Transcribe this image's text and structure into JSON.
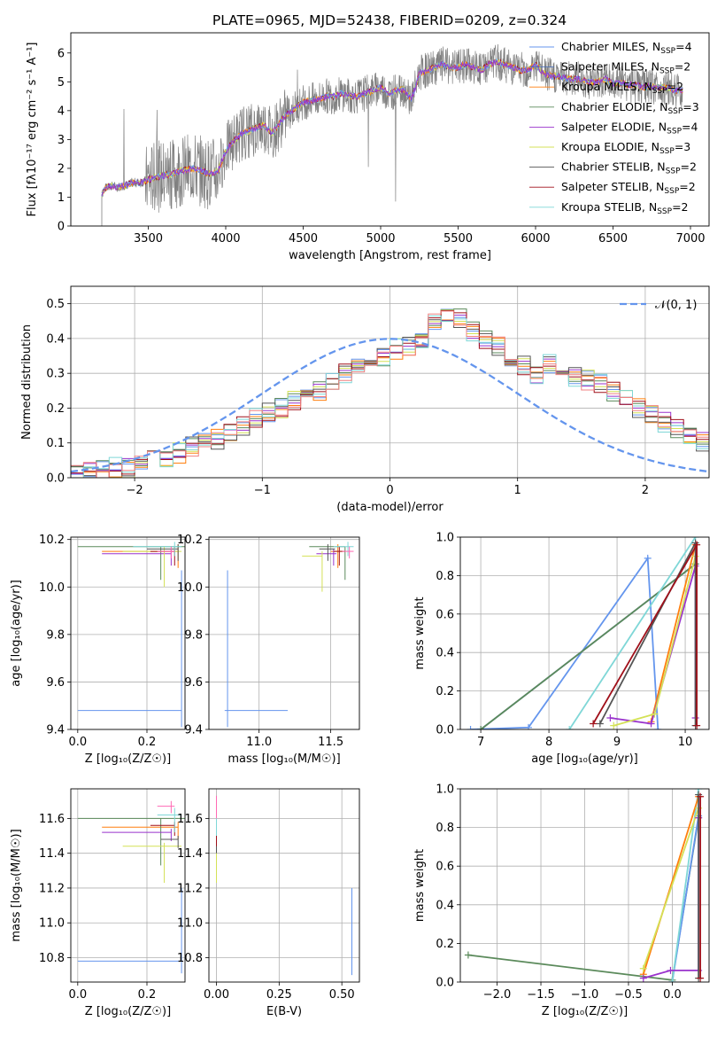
{
  "title": "PLATE=0965, MJD=52438, FIBERID=0209, z=0.324",
  "colors": {
    "chabrier_miles": "#6495ED",
    "salpeter_miles": "#4B6FB5",
    "kroupa_miles": "#FF7F0E",
    "chabrier_elodie": "#5B8A5B",
    "salpeter_elodie": "#9932CC",
    "kroupa_elodie": "#D4E157",
    "chabrier_stelib": "#555555",
    "salpeter_stelib": "#A0101A",
    "kroupa_stelib": "#7FD7D7",
    "data": "#808080",
    "pink": "#FF69B4",
    "salmon": "#F08080"
  },
  "chart_data": [
    {
      "type": "line",
      "id": "spectrum",
      "xlabel": "wavelength [Angstrom, rest frame]",
      "ylabel": "Flux [fλ10⁻¹⁷ erg cm⁻² s⁻¹ A⁻¹]",
      "xlim": [
        3000,
        7120
      ],
      "ylim": [
        0,
        6.7
      ],
      "xticks": [
        3500,
        4000,
        4500,
        5000,
        5500,
        6000,
        6500,
        7000
      ],
      "yticks": [
        0,
        1,
        2,
        3,
        4,
        5,
        6
      ],
      "legend": [
        "Chabrier MILES, N_SSP=4",
        "Salpeter MILES, N_SSP=2",
        "Kroupa MILES, N_SSP=2",
        "Chabrier ELODIE, N_SSP=3",
        "Salpeter ELODIE, N_SSP=4",
        "Kroupa ELODIE, N_SSP=3",
        "Chabrier STELIB, N_SSP=2",
        "Salpeter STELIB, N_SSP=2",
        "Kroupa STELIB, N_SSP=2"
      ],
      "legend_placement": "upper-right",
      "continuum": {
        "x": [
          3200,
          3220,
          3250,
          3300,
          3350,
          3400,
          3450,
          3500,
          3550,
          3600,
          3650,
          3700,
          3750,
          3800,
          3850,
          3900,
          3950,
          4000,
          4050,
          4100,
          4150,
          4200,
          4250,
          4300,
          4350,
          4400,
          4450,
          4500,
          4550,
          4600,
          4650,
          4700,
          4750,
          4800,
          4850,
          4900,
          4950,
          5000,
          5050,
          5100,
          5150,
          5200,
          5250,
          5300,
          5350,
          5400,
          5450,
          5500,
          5550,
          5600,
          5650,
          5700,
          5750,
          5800,
          5850,
          5900,
          5950,
          6000,
          6050,
          6100,
          6150,
          6200,
          6250,
          6300,
          6350,
          6400,
          6450,
          6500,
          6550,
          6600,
          6650,
          6700,
          6750,
          6800,
          6850,
          6900,
          6950
        ],
        "y": [
          1.1,
          1.3,
          1.4,
          1.35,
          1.4,
          1.5,
          1.5,
          1.6,
          1.7,
          1.75,
          1.8,
          1.9,
          1.95,
          2.0,
          1.9,
          1.8,
          1.9,
          2.6,
          2.95,
          3.2,
          3.3,
          3.4,
          3.5,
          3.2,
          3.6,
          3.9,
          4.1,
          4.3,
          4.35,
          4.4,
          4.5,
          4.5,
          4.6,
          4.5,
          4.5,
          4.6,
          4.7,
          4.8,
          4.6,
          4.7,
          4.75,
          4.4,
          5.3,
          5.4,
          5.5,
          5.6,
          5.5,
          5.5,
          5.6,
          5.5,
          5.4,
          5.6,
          5.7,
          5.6,
          5.5,
          5.4,
          5.4,
          5.6,
          5.3,
          5.2,
          5.2,
          5.1,
          5.1,
          5.1,
          5.0,
          5.0,
          5.1,
          4.95,
          4.95,
          4.9,
          4.9,
          4.8,
          4.85,
          4.8,
          4.8,
          4.7,
          4.7
        ]
      },
      "data_x_range": [
        3200,
        6950
      ]
    },
    {
      "type": "step",
      "id": "residuals",
      "xlabel": "(data-model)/error",
      "ylabel": "Normed distribution",
      "xlim": [
        -2.5,
        2.5
      ],
      "ylim": [
        0,
        0.55
      ],
      "xticks": [
        -2,
        -1,
        0,
        1,
        2
      ],
      "yticks": [
        0.0,
        0.1,
        0.2,
        0.3,
        0.4,
        0.5
      ],
      "legend": [
        "𝒩(0, 1)"
      ],
      "legend_placement": "upper-right",
      "bin_width": 0.1,
      "bin_start": -2.5,
      "base_hist": [
        0.02,
        0.02,
        0.02,
        0.03,
        0.03,
        0.04,
        0.05,
        0.06,
        0.07,
        0.09,
        0.1,
        0.11,
        0.13,
        0.15,
        0.17,
        0.19,
        0.2,
        0.22,
        0.23,
        0.25,
        0.27,
        0.3,
        0.32,
        0.33,
        0.35,
        0.37,
        0.38,
        0.4,
        0.45,
        0.47,
        0.46,
        0.42,
        0.4,
        0.38,
        0.35,
        0.32,
        0.3,
        0.33,
        0.31,
        0.29,
        0.28,
        0.27,
        0.25,
        0.23,
        0.2,
        0.18,
        0.16,
        0.14,
        0.12,
        0.1,
        0.09,
        0.08,
        0.07,
        0.06,
        0.05,
        0.04,
        0.03,
        0.03,
        0.02,
        0.02,
        0.02
      ]
    },
    {
      "type": "errorbar",
      "id": "age_vs_z",
      "xlabel": "Z [log₁₀(Z/Z☉)]",
      "ylabel": "age  [log₁₀(age/yr)]",
      "xlim": [
        -0.02,
        0.31
      ],
      "ylim": [
        9.4,
        10.21
      ],
      "xticks": [
        0.0,
        0.2
      ],
      "yticks": [
        9.4,
        9.6,
        9.8,
        10.0,
        10.2
      ],
      "points": [
        {
          "x": 0.3,
          "y": 9.48,
          "xerr": [
            0.3,
            0.0
          ],
          "yerr": [
            0.07,
            0.59
          ],
          "c": "chabrier_miles"
        },
        {
          "x": 0.29,
          "y": 10.15,
          "xerr": [
            0.22,
            0.0
          ],
          "yerr": [
            0.07,
            0.03
          ],
          "c": "kroupa_miles"
        },
        {
          "x": 0.24,
          "y": 10.17,
          "xerr": [
            0.24,
            0.07
          ],
          "yerr": [
            0.14,
            0.0
          ],
          "c": "chabrier_elodie"
        },
        {
          "x": 0.27,
          "y": 10.14,
          "xerr": [
            0.2,
            0.0
          ],
          "yerr": [
            0.05,
            0.02
          ],
          "c": "salpeter_elodie"
        },
        {
          "x": 0.25,
          "y": 10.15,
          "xerr": [
            0.12,
            0.05
          ],
          "yerr": [
            0.15,
            0.02
          ],
          "c": "kroupa_elodie"
        },
        {
          "x": 0.29,
          "y": 10.16,
          "xerr": [
            0.09,
            0.0
          ],
          "yerr": [
            0.05,
            0.02
          ],
          "c": "chabrier_stelib"
        },
        {
          "x": 0.28,
          "y": 10.15,
          "xerr": [
            0.07,
            0.0
          ],
          "yerr": [
            0.06,
            0.02
          ],
          "c": "salpeter_stelib"
        },
        {
          "x": 0.28,
          "y": 10.17,
          "xerr": [
            0.12,
            0.02
          ],
          "yerr": [
            0.04,
            0.02
          ],
          "c": "kroupa_stelib"
        },
        {
          "x": 0.27,
          "y": 10.15,
          "xerr": [
            0.04,
            0.01
          ],
          "yerr": [
            0.03,
            0.02
          ],
          "c": "pink"
        }
      ]
    },
    {
      "type": "errorbar",
      "id": "age_vs_mass",
      "xlabel": "mass [log₁₀(M/M☉)]",
      "ylabel": "",
      "xlim": [
        10.65,
        11.7
      ],
      "ylim": [
        9.4,
        10.21
      ],
      "xticks": [
        11.0,
        11.5
      ],
      "yticks": [
        9.4,
        9.6,
        9.8,
        10.0,
        10.2
      ],
      "points": [
        {
          "x": 10.78,
          "y": 9.48,
          "xerr": [
            0.02,
            0.42
          ],
          "yerr": [
            0.07,
            0.59
          ],
          "c": "chabrier_miles"
        },
        {
          "x": 11.55,
          "y": 10.15,
          "xerr": [
            0.05,
            0.05
          ],
          "yerr": [
            0.07,
            0.03
          ],
          "c": "kroupa_miles"
        },
        {
          "x": 11.6,
          "y": 10.17,
          "xerr": [
            0.25,
            0.0
          ],
          "yerr": [
            0.14,
            0.0
          ],
          "c": "chabrier_elodie"
        },
        {
          "x": 11.52,
          "y": 10.14,
          "xerr": [
            0.12,
            0.02
          ],
          "yerr": [
            0.05,
            0.02
          ],
          "c": "salpeter_elodie"
        },
        {
          "x": 11.44,
          "y": 10.13,
          "xerr": [
            0.14,
            0.0
          ],
          "yerr": [
            0.15,
            0.02
          ],
          "c": "kroupa_elodie"
        },
        {
          "x": 11.48,
          "y": 10.16,
          "xerr": [
            0.06,
            0.05
          ],
          "yerr": [
            0.05,
            0.02
          ],
          "c": "chabrier_stelib"
        },
        {
          "x": 11.56,
          "y": 10.15,
          "xerr": [
            0.04,
            0.04
          ],
          "yerr": [
            0.06,
            0.02
          ],
          "c": "salpeter_stelib"
        },
        {
          "x": 11.62,
          "y": 10.17,
          "xerr": [
            0.1,
            0.04
          ],
          "yerr": [
            0.04,
            0.02
          ],
          "c": "kroupa_stelib"
        },
        {
          "x": 11.63,
          "y": 10.15,
          "xerr": [
            0.05,
            0.03
          ],
          "yerr": [
            0.03,
            0.02
          ],
          "c": "pink"
        }
      ]
    },
    {
      "type": "line",
      "id": "weight_vs_age",
      "xlabel": "age  [log₁₀(age/yr)]",
      "ylabel": "mass weight",
      "xlim": [
        6.7,
        10.35
      ],
      "ylim": [
        0.0,
        1.0
      ],
      "xticks": [
        7,
        8,
        9,
        10
      ],
      "yticks": [
        0.0,
        0.2,
        0.4,
        0.6,
        0.8,
        1.0
      ],
      "series": [
        {
          "c": "chabrier_miles",
          "x": [
            6.85,
            7.7,
            9.45,
            9.6
          ],
          "y": [
            0.0,
            0.01,
            0.89,
            0.0
          ]
        },
        {
          "c": "salpeter_miles",
          "x": [
            7.0,
            10.15
          ],
          "y": [
            0.0,
            0.86
          ]
        },
        {
          "c": "chabrier_elodie",
          "x": [
            7.0,
            10.15
          ],
          "y": [
            0.0,
            0.86
          ]
        },
        {
          "c": "kroupa_stelib",
          "x": [
            8.3,
            10.15
          ],
          "y": [
            0.0,
            1.0
          ]
        },
        {
          "c": "kroupa_miles",
          "x": [
            9.5,
            10.15
          ],
          "y": [
            0.04,
            0.96
          ]
        },
        {
          "c": "salpeter_elodie",
          "x": [
            8.9,
            9.5,
            10.15,
            10.15
          ],
          "y": [
            0.06,
            0.03,
            0.85,
            0.06
          ]
        },
        {
          "c": "kroupa_elodie",
          "x": [
            8.95,
            9.55,
            10.15
          ],
          "y": [
            0.02,
            0.08,
            0.9
          ]
        },
        {
          "c": "chabrier_stelib",
          "x": [
            8.75,
            10.15,
            10.15
          ],
          "y": [
            0.03,
            0.97,
            0.02
          ]
        },
        {
          "c": "salpeter_stelib",
          "x": [
            8.65,
            10.17,
            10.17
          ],
          "y": [
            0.03,
            0.96,
            0.02
          ]
        }
      ]
    },
    {
      "type": "errorbar",
      "id": "mass_vs_z",
      "xlabel": "Z [log₁₀(Z/Z☉)]",
      "ylabel": "mass [log₁₀(M/M☉)]",
      "xlim": [
        -0.02,
        0.31
      ],
      "ylim": [
        10.66,
        11.77
      ],
      "xticks": [
        0.0,
        0.2
      ],
      "yticks": [
        10.8,
        11.0,
        11.2,
        11.4,
        11.6
      ],
      "points": [
        {
          "x": 0.3,
          "y": 10.78,
          "xerr": [
            0.3,
            0.0
          ],
          "yerr": [
            0.07,
            0.42
          ],
          "c": "chabrier_miles"
        },
        {
          "x": 0.29,
          "y": 11.55,
          "xerr": [
            0.22,
            0.0
          ],
          "yerr": [
            0.07,
            0.03
          ],
          "c": "kroupa_miles"
        },
        {
          "x": 0.24,
          "y": 11.6,
          "xerr": [
            0.24,
            0.07
          ],
          "yerr": [
            0.27,
            0.0
          ],
          "c": "chabrier_elodie"
        },
        {
          "x": 0.27,
          "y": 11.52,
          "xerr": [
            0.2,
            0.0
          ],
          "yerr": [
            0.05,
            0.02
          ],
          "c": "salpeter_elodie"
        },
        {
          "x": 0.25,
          "y": 11.44,
          "xerr": [
            0.12,
            0.05
          ],
          "yerr": [
            0.21,
            0.02
          ],
          "c": "kroupa_elodie"
        },
        {
          "x": 0.29,
          "y": 11.48,
          "xerr": [
            0.05,
            0.0
          ],
          "yerr": [
            0.05,
            0.02
          ],
          "c": "chabrier_stelib"
        },
        {
          "x": 0.28,
          "y": 11.56,
          "xerr": [
            0.07,
            0.0
          ],
          "yerr": [
            0.06,
            0.02
          ],
          "c": "salpeter_stelib"
        },
        {
          "x": 0.28,
          "y": 11.62,
          "xerr": [
            0.05,
            0.02
          ],
          "yerr": [
            0.1,
            0.04
          ],
          "c": "kroupa_stelib"
        },
        {
          "x": 0.27,
          "y": 11.67,
          "xerr": [
            0.04,
            0.01
          ],
          "yerr": [
            0.04,
            0.03
          ],
          "c": "pink"
        }
      ]
    },
    {
      "type": "errorbar",
      "id": "mass_vs_ebv",
      "xlabel": "E(B-V)",
      "ylabel": "",
      "xlim": [
        -0.03,
        0.57
      ],
      "ylim": [
        10.66,
        11.77
      ],
      "xticks": [
        0.0,
        0.25,
        0.5
      ],
      "yticks": [
        10.8,
        11.0,
        11.2,
        11.4,
        11.6
      ],
      "points": [
        {
          "x": 0.54,
          "y": 10.9,
          "xerr": [
            0.0,
            0.0
          ],
          "yerr": [
            0.2,
            0.3
          ],
          "c": "chabrier_miles"
        },
        {
          "x": 0.0,
          "y": 11.55,
          "xerr": [
            0.0,
            0.0
          ],
          "yerr": [
            0.05,
            0.05
          ],
          "c": "kroupa_miles"
        },
        {
          "x": 0.0,
          "y": 11.5,
          "xerr": [
            0.0,
            0.0
          ],
          "yerr": [
            0.17,
            0.1
          ],
          "c": "chabrier_elodie"
        },
        {
          "x": 0.0,
          "y": 11.52,
          "xerr": [
            0.0,
            0.0
          ],
          "yerr": [
            0.05,
            0.02
          ],
          "c": "salpeter_elodie"
        },
        {
          "x": 0.0,
          "y": 11.4,
          "xerr": [
            0.0,
            0.0
          ],
          "yerr": [
            0.17,
            0.06
          ],
          "c": "kroupa_elodie"
        },
        {
          "x": 0.0,
          "y": 11.45,
          "xerr": [
            0.0,
            0.0
          ],
          "yerr": [
            0.05,
            0.05
          ],
          "c": "chabrier_stelib"
        },
        {
          "x": 0.0,
          "y": 11.5,
          "xerr": [
            0.0,
            0.0
          ],
          "yerr": [
            0.06,
            0.06
          ],
          "c": "salpeter_stelib"
        },
        {
          "x": 0.0,
          "y": 11.6,
          "xerr": [
            0.0,
            0.0
          ],
          "yerr": [
            0.1,
            0.05
          ],
          "c": "kroupa_stelib"
        },
        {
          "x": 0.0,
          "y": 11.65,
          "xerr": [
            0.0,
            0.0
          ],
          "yerr": [
            0.05,
            0.08
          ],
          "c": "pink"
        }
      ]
    },
    {
      "type": "line",
      "id": "weight_vs_z",
      "xlabel": "Z [log₁₀(Z/Z☉)]",
      "ylabel": "mass weight",
      "xlim": [
        -2.42,
        0.42
      ],
      "ylim": [
        0.0,
        1.0
      ],
      "xticks": [
        -2.0,
        -1.5,
        -1.0,
        -0.5,
        0.0
      ],
      "yticks": [
        0.0,
        0.2,
        0.4,
        0.6,
        0.8,
        1.0
      ],
      "series": [
        {
          "c": "chabrier_elodie",
          "x": [
            -2.33,
            0.0,
            0.3
          ],
          "y": [
            0.14,
            0.01,
            0.85
          ]
        },
        {
          "c": "chabrier_miles",
          "x": [
            0.0,
            0.3
          ],
          "y": [
            0.0,
            0.86
          ]
        },
        {
          "c": "kroupa_stelib",
          "x": [
            0.0,
            0.3
          ],
          "y": [
            0.0,
            1.0
          ]
        },
        {
          "c": "kroupa_miles",
          "x": [
            -0.33,
            0.3
          ],
          "y": [
            0.04,
            0.96
          ]
        },
        {
          "c": "kroupa_elodie",
          "x": [
            -0.33,
            0.3
          ],
          "y": [
            0.07,
            0.9
          ]
        },
        {
          "c": "salpeter_elodie",
          "x": [
            -0.33,
            -0.02,
            0.3,
            0.3
          ],
          "y": [
            0.02,
            0.06,
            0.06,
            0.85
          ]
        },
        {
          "c": "chabrier_stelib",
          "x": [
            0.3,
            0.3
          ],
          "y": [
            0.02,
            0.97
          ]
        },
        {
          "c": "salpeter_stelib",
          "x": [
            0.32,
            0.32
          ],
          "y": [
            0.02,
            0.96
          ]
        }
      ]
    }
  ]
}
